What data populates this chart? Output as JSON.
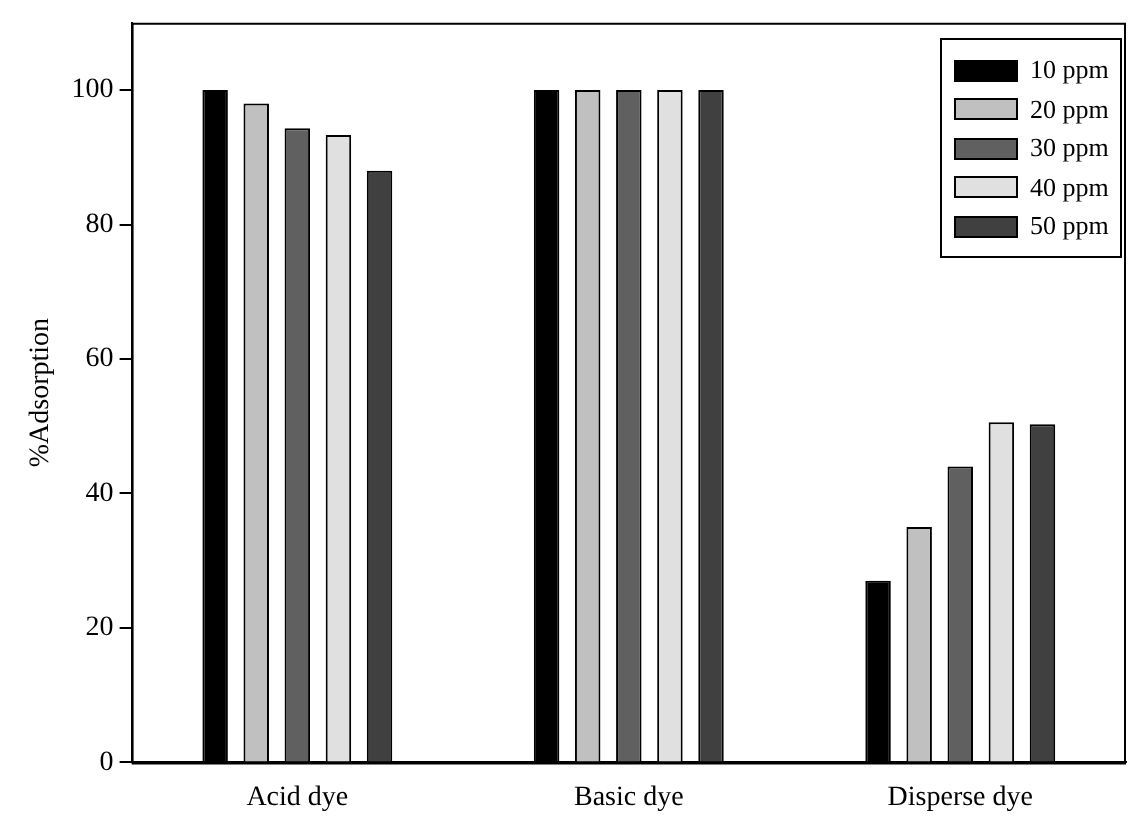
{
  "chart_data": {
    "type": "bar",
    "ylabel": "%Adsorption",
    "categories": [
      "Acid dye",
      "Basic dye",
      "Disperse dye"
    ],
    "series": [
      {
        "name": "10 ppm",
        "color": "#000000",
        "values": [
          100,
          100,
          27
        ]
      },
      {
        "name": "20 ppm",
        "color": "#c0c0c0",
        "values": [
          98,
          100,
          35
        ]
      },
      {
        "name": "30 ppm",
        "color": "#606060",
        "values": [
          94.3,
          100,
          44
        ]
      },
      {
        "name": "40 ppm",
        "color": "#e0e0e0",
        "values": [
          93.3,
          100,
          50.6
        ]
      },
      {
        "name": "50 ppm",
        "color": "#404040",
        "values": [
          88,
          100,
          50.3
        ]
      }
    ],
    "ylim": [
      0,
      110
    ],
    "yticks": [
      0,
      20,
      40,
      60,
      80,
      100
    ],
    "grid": false,
    "legend": "top right"
  }
}
